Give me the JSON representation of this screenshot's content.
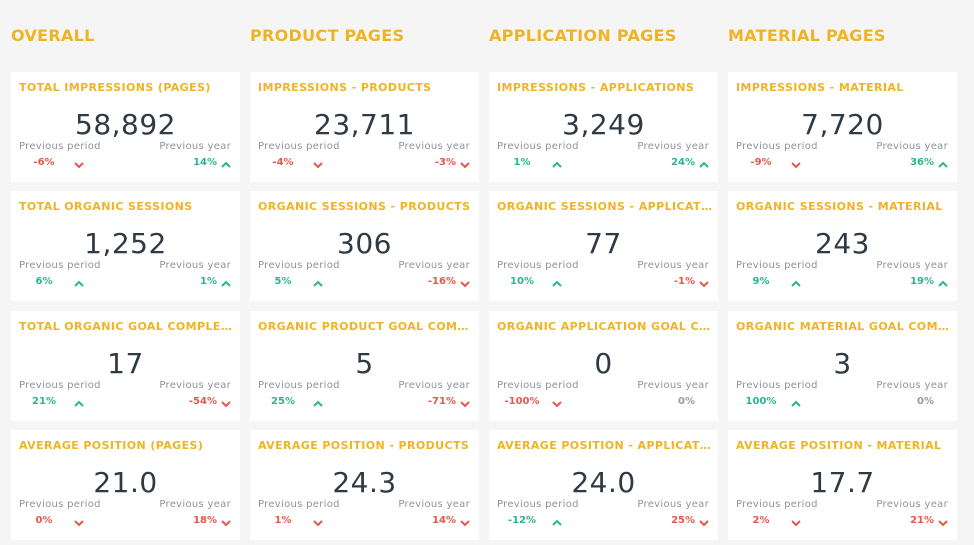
{
  "colors": {
    "accent": "#f0b323",
    "up": "#2bb58f",
    "down": "#e8574a",
    "neutral": "#999999"
  },
  "labels": {
    "prev_period": "Previous period",
    "prev_year": "Previous year"
  },
  "columns": [
    {
      "title": "OVERALL",
      "cards": [
        {
          "title": "TOTAL IMPRESSIONS (PAGES)",
          "value": "58,892",
          "pp": "-6%",
          "pp_dir": "down",
          "py": "14%",
          "py_dir": "up"
        },
        {
          "title": "TOTAL ORGANIC SESSIONS",
          "value": "1,252",
          "pp": "6%",
          "pp_dir": "up",
          "py": "1%",
          "py_dir": "up"
        },
        {
          "title": "TOTAL ORGANIC GOAL COMPLETI...",
          "value": "17",
          "pp": "21%",
          "pp_dir": "up",
          "py": "-54%",
          "py_dir": "down"
        },
        {
          "title": "AVERAGE POSITION (PAGES)",
          "value": "21.0",
          "pp": "0%",
          "pp_dir": "down",
          "py": "18%",
          "py_dir": "down"
        }
      ]
    },
    {
      "title": "PRODUCT PAGES",
      "cards": [
        {
          "title": "IMPRESSIONS - PRODUCTS",
          "value": "23,711",
          "pp": "-4%",
          "pp_dir": "down",
          "py": "-3%",
          "py_dir": "down"
        },
        {
          "title": "ORGANIC SESSIONS - PRODUCTS",
          "value": "306",
          "pp": "5%",
          "pp_dir": "up",
          "py": "-16%",
          "py_dir": "down"
        },
        {
          "title": "ORGANIC PRODUCT GOAL COMPL...",
          "value": "5",
          "pp": "25%",
          "pp_dir": "up",
          "py": "-71%",
          "py_dir": "down"
        },
        {
          "title": "AVERAGE POSITION - PRODUCTS",
          "value": "24.3",
          "pp": "1%",
          "pp_dir": "down",
          "py": "14%",
          "py_dir": "down"
        }
      ]
    },
    {
      "title": "APPLICATION PAGES",
      "cards": [
        {
          "title": "IMPRESSIONS - APPLICATIONS",
          "value": "3,249",
          "pp": "1%",
          "pp_dir": "up",
          "py": "24%",
          "py_dir": "up"
        },
        {
          "title": "ORGANIC SESSIONS - APPLICATI...",
          "value": "77",
          "pp": "10%",
          "pp_dir": "up",
          "py": "-1%",
          "py_dir": "down"
        },
        {
          "title": "ORGANIC APPLICATION GOAL CO...",
          "value": "0",
          "pp": "-100%",
          "pp_dir": "down",
          "py": "0%",
          "py_dir": "none"
        },
        {
          "title": "AVERAGE POSITION - APPLICATI...",
          "value": "24.0",
          "pp": "-12%",
          "pp_dir": "up",
          "py": "25%",
          "py_dir": "down"
        }
      ]
    },
    {
      "title": "MATERIAL PAGES",
      "cards": [
        {
          "title": "IMPRESSIONS - MATERIAL",
          "value": "7,720",
          "pp": "-9%",
          "pp_dir": "down",
          "py": "36%",
          "py_dir": "up"
        },
        {
          "title": "ORGANIC SESSIONS - MATERIAL",
          "value": "243",
          "pp": "9%",
          "pp_dir": "up",
          "py": "19%",
          "py_dir": "up"
        },
        {
          "title": "ORGANIC MATERIAL GOAL COMP...",
          "value": "3",
          "pp": "100%",
          "pp_dir": "up",
          "py": "0%",
          "py_dir": "none"
        },
        {
          "title": "AVERAGE POSITION - MATERIAL",
          "value": "17.7",
          "pp": "2%",
          "pp_dir": "down",
          "py": "21%",
          "py_dir": "down"
        }
      ]
    }
  ]
}
